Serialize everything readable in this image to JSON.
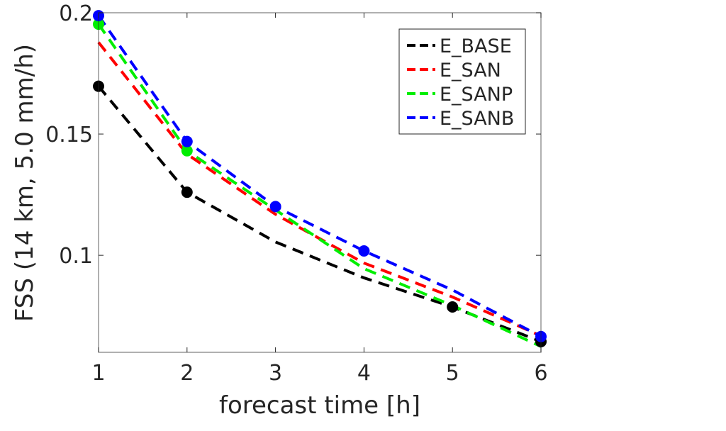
{
  "chart_data": {
    "type": "line",
    "title": "",
    "xlabel": "forecast time [h]",
    "ylabel": "FSS (14 km, 5.0 mm/h)",
    "xlim": [
      1,
      6
    ],
    "ylim": [
      0.06,
      0.2
    ],
    "xticks": [
      1,
      2,
      3,
      4,
      5,
      6
    ],
    "xtick_labels": [
      "1",
      "2",
      "3",
      "4",
      "5",
      "6"
    ],
    "yticks": [
      0.1,
      0.15,
      0.2
    ],
    "ytick_labels": [
      "0.1",
      "0.15",
      "0.2"
    ],
    "grid": false,
    "legend_placement": "top-right",
    "x": [
      1,
      2,
      3,
      4,
      5,
      6
    ],
    "series": [
      {
        "name": "E_BASE",
        "color": "#000000",
        "values": [
          0.1697,
          0.126,
          0.1055,
          0.0907,
          0.0787,
          0.0644
        ],
        "markers": [
          1,
          2,
          5,
          6
        ]
      },
      {
        "name": "E_SAN",
        "color": "#ff0000",
        "values": [
          0.1878,
          0.1417,
          0.1169,
          0.0968,
          0.0828,
          0.0668
        ],
        "markers": []
      },
      {
        "name": "E_SANP",
        "color": "#00ee00",
        "values": [
          0.1953,
          0.1431,
          0.1187,
          0.0945,
          0.0793,
          0.0624
        ],
        "markers": [
          1,
          2
        ]
      },
      {
        "name": "E_SANB",
        "color": "#0000ff",
        "values": [
          0.1988,
          0.1469,
          0.1201,
          0.1018,
          0.0857,
          0.0665
        ],
        "markers": [
          1,
          2,
          3,
          4,
          6
        ]
      }
    ]
  }
}
